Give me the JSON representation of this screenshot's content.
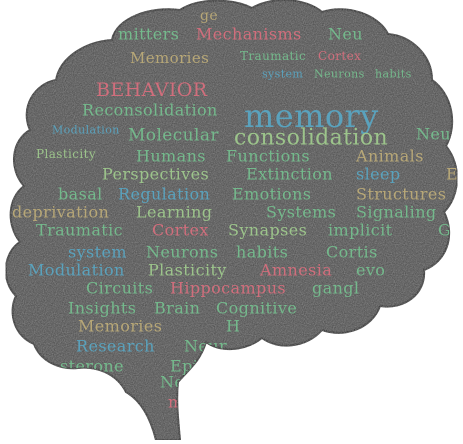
{
  "colors": {
    "background": "#ffffff",
    "brain_fill": "#4a4a4a",
    "brain_outline": "#1a1a1a",
    "green": "#74b98c",
    "blue": "#5aa2bd",
    "pink": "#d06e7c",
    "tan": "#b7a777",
    "light_green": "#9cc48b"
  },
  "words": [
    {
      "text": "mitters",
      "color": "green"
    },
    {
      "text": "Mechanisms",
      "color": "pink"
    },
    {
      "text": "Neu",
      "color": "green"
    },
    {
      "text": "ge",
      "color": "tan"
    },
    {
      "text": "Memories",
      "color": "tan"
    },
    {
      "text": "Traumatic",
      "color": "green"
    },
    {
      "text": "Cortex",
      "color": "pink"
    },
    {
      "text": "system",
      "color": "blue"
    },
    {
      "text": "Neurons",
      "color": "green"
    },
    {
      "text": "habits",
      "color": "green"
    },
    {
      "text": "BEHAVIOR",
      "color": "pink"
    },
    {
      "text": "memory",
      "color": "blue"
    },
    {
      "text": "Reconsolidation",
      "color": "green"
    },
    {
      "text": "Modulation",
      "color": "blue"
    },
    {
      "text": "Molecular",
      "color": "green"
    },
    {
      "text": "consolidation",
      "color": "light_green"
    },
    {
      "text": "Neur",
      "color": "green"
    },
    {
      "text": "Plasticity",
      "color": "light_green"
    },
    {
      "text": "Humans",
      "color": "green"
    },
    {
      "text": "Functions",
      "color": "green"
    },
    {
      "text": "Animals",
      "color": "tan"
    },
    {
      "text": "Perspectives",
      "color": "light_green"
    },
    {
      "text": "Extinction",
      "color": "green"
    },
    {
      "text": "sleep",
      "color": "blue"
    },
    {
      "text": "E",
      "color": "tan"
    },
    {
      "text": "basal",
      "color": "green"
    },
    {
      "text": "Regulation",
      "color": "blue"
    },
    {
      "text": "Emotions",
      "color": "green"
    },
    {
      "text": "Structures",
      "color": "tan"
    },
    {
      "text": "deprivation",
      "color": "tan"
    },
    {
      "text": "Learning",
      "color": "light_green"
    },
    {
      "text": "Systems",
      "color": "green"
    },
    {
      "text": "Signaling",
      "color": "green"
    },
    {
      "text": "Traumatic",
      "color": "green"
    },
    {
      "text": "Cortex",
      "color": "pink"
    },
    {
      "text": "Synapses",
      "color": "light_green"
    },
    {
      "text": "implicit",
      "color": "green"
    },
    {
      "text": "G",
      "color": "green"
    },
    {
      "text": "system",
      "color": "blue"
    },
    {
      "text": "Neurons",
      "color": "green"
    },
    {
      "text": "habits",
      "color": "green"
    },
    {
      "text": "Cortis",
      "color": "green"
    },
    {
      "text": "Modulation",
      "color": "blue"
    },
    {
      "text": "Plasticity",
      "color": "light_green"
    },
    {
      "text": "Amnesia",
      "color": "pink"
    },
    {
      "text": "evo",
      "color": "green"
    },
    {
      "text": "Circuits",
      "color": "green"
    },
    {
      "text": "Hippocampus",
      "color": "pink"
    },
    {
      "text": "gangl",
      "color": "green"
    },
    {
      "text": "Insights",
      "color": "green"
    },
    {
      "text": "Brain",
      "color": "green"
    },
    {
      "text": "Cognitive",
      "color": "green"
    },
    {
      "text": "Memories",
      "color": "tan"
    },
    {
      "text": "H",
      "color": "green"
    },
    {
      "text": "Research",
      "color": "blue"
    },
    {
      "text": "Neur",
      "color": "green"
    },
    {
      "text": "sterone",
      "color": "green"
    },
    {
      "text": "Epig",
      "color": "green"
    },
    {
      "text": "Neu",
      "color": "green"
    },
    {
      "text": "ms",
      "color": "pink"
    },
    {
      "text": "M",
      "color": "pink"
    }
  ]
}
